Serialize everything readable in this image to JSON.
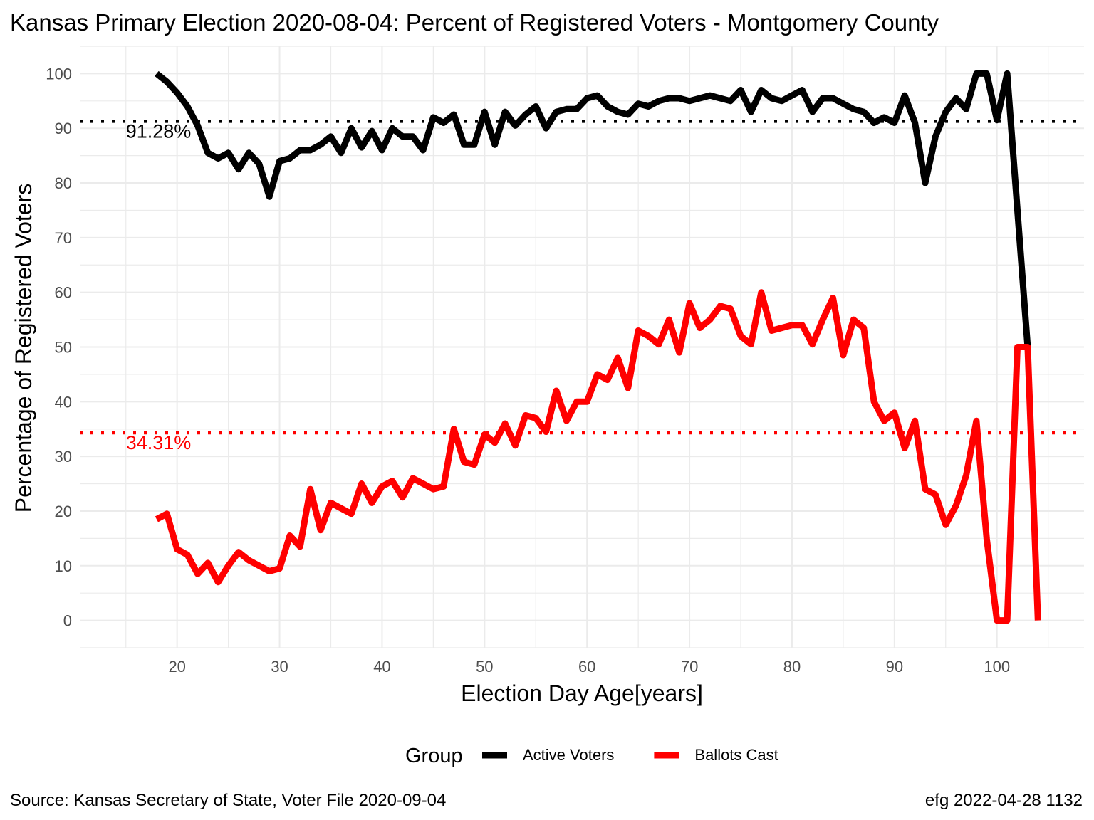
{
  "chart_data": {
    "type": "line",
    "title": "Kansas Primary Election 2020-08-04:  Percent of Registered Voters - Montgomery County",
    "xlabel": "Election Day Age[years]",
    "ylabel": "Percentage of Registered Voters",
    "xlim": [
      10.5,
      108.5
    ],
    "ylim": [
      -5,
      105
    ],
    "x_ticks": [
      20,
      30,
      40,
      50,
      60,
      70,
      80,
      90,
      100
    ],
    "y_ticks": [
      0,
      10,
      20,
      30,
      40,
      50,
      60,
      70,
      80,
      90,
      100
    ],
    "grid": true,
    "legend": {
      "title": "Group",
      "position": "bottom"
    },
    "x": [
      18,
      19,
      20,
      21,
      22,
      23,
      24,
      25,
      26,
      27,
      28,
      29,
      30,
      31,
      32,
      33,
      34,
      35,
      36,
      37,
      38,
      39,
      40,
      41,
      42,
      43,
      44,
      45,
      46,
      47,
      48,
      49,
      50,
      51,
      52,
      53,
      54,
      55,
      56,
      57,
      58,
      59,
      60,
      61,
      62,
      63,
      64,
      65,
      66,
      67,
      68,
      69,
      70,
      71,
      72,
      73,
      74,
      75,
      76,
      77,
      78,
      79,
      80,
      81,
      82,
      83,
      84,
      85,
      86,
      87,
      88,
      89,
      90,
      91,
      92,
      93,
      94,
      95,
      96,
      97,
      98,
      99,
      100,
      101,
      102,
      103,
      104
    ],
    "series": [
      {
        "name": "Active Voters",
        "color": "#000000",
        "values": [
          100,
          98.5,
          96.5,
          94,
          90.5,
          85.5,
          84.5,
          85.5,
          82.5,
          85.5,
          83.5,
          77.5,
          84,
          84.5,
          86,
          86,
          87,
          88.5,
          85.5,
          90,
          86.5,
          89.5,
          86,
          90,
          88.5,
          88.5,
          86,
          92,
          91,
          92.5,
          87,
          87,
          93,
          87,
          93,
          90.5,
          92.5,
          94,
          90,
          93,
          93.5,
          93.5,
          95.5,
          96,
          94,
          93,
          92.5,
          94.5,
          94,
          95,
          95.5,
          95.5,
          95,
          95.5,
          96,
          95.5,
          95,
          97,
          93,
          97,
          95.5,
          95,
          96,
          97,
          93,
          95.5,
          95.5,
          94.5,
          93.5,
          93,
          91,
          92,
          91,
          96,
          91,
          80,
          88.5,
          93,
          95.5,
          93.5,
          100,
          100,
          91.5,
          100,
          75,
          50,
          null
        ]
      },
      {
        "name": "Ballots Cast",
        "color": "#ff0000",
        "values": [
          18.5,
          19.5,
          13,
          12,
          8.5,
          10.5,
          7,
          10,
          12.5,
          11,
          10,
          9,
          9.5,
          15.5,
          13.5,
          24,
          16.5,
          21.5,
          20.5,
          19.5,
          25,
          21.5,
          24.5,
          25.5,
          22.5,
          26,
          25,
          24,
          24.5,
          35,
          29,
          28.5,
          34,
          32.5,
          36,
          32,
          37.5,
          37,
          34.5,
          42,
          36.5,
          40,
          40,
          45,
          44,
          48,
          42.5,
          53,
          52,
          50.5,
          55,
          49,
          58,
          53.5,
          55,
          57.5,
          57,
          52,
          50.5,
          60,
          53,
          53.5,
          54,
          54,
          50.5,
          55,
          59,
          48.5,
          55,
          53.5,
          40,
          36.5,
          38,
          31.5,
          36.5,
          24,
          23,
          17.5,
          21,
          26.5,
          36.5,
          15,
          0,
          0,
          50,
          50,
          0
        ]
      }
    ],
    "reference_lines": [
      {
        "series": "Active Voters",
        "value": 91.28,
        "label": "91.28%",
        "color": "#000000"
      },
      {
        "series": "Ballots Cast",
        "value": 34.31,
        "label": "34.31%",
        "color": "#ff0000"
      }
    ],
    "caption_left": "Source:  Kansas Secretary of State, Voter File  2020-09-04",
    "caption_right": "efg 2022-04-28 1132"
  }
}
